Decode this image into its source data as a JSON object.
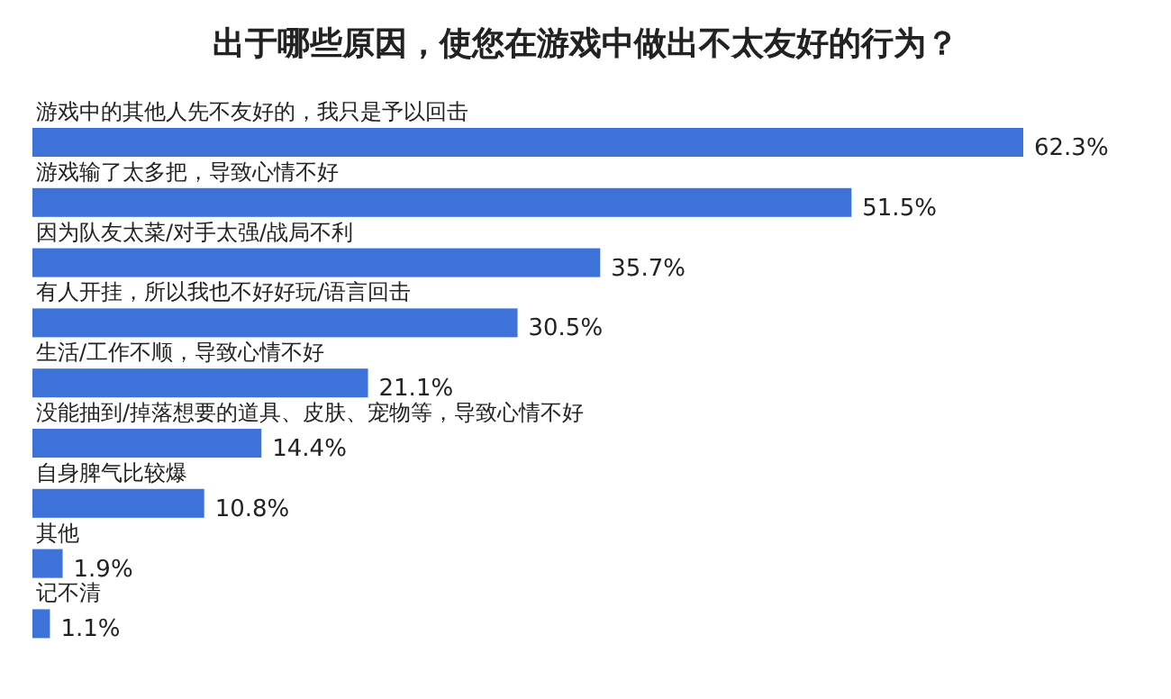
{
  "chart_data": {
    "type": "bar",
    "orientation": "horizontal",
    "title": "出于哪些原因，使您在游戏中做出不太友好的行为？",
    "categories": [
      "游戏中的其他人先不友好的，我只是予以回击",
      "游戏输了太多把，导致心情不好",
      "因为队友太菜/对手太强/战局不利",
      "有人开挂，所以我也不好好玩/语言回击",
      "生活/工作不顺，导致心情不好",
      "没能抽到/掉落想要的道具、皮肤、宠物等，导致心情不好",
      "自身脾气比较爆",
      "其他",
      "记不清"
    ],
    "values": [
      62.3,
      51.5,
      35.7,
      30.5,
      21.1,
      14.4,
      10.8,
      1.9,
      1.1
    ],
    "value_labels": [
      "62.3%",
      "51.5%",
      "35.7%",
      "30.5%",
      "21.1%",
      "14.4%",
      "10.8%",
      "1.9%",
      "1.1%"
    ],
    "color": "#3d72d9"
  }
}
